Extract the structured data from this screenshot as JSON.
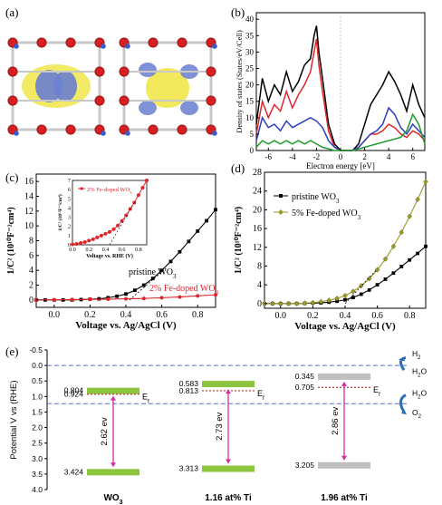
{
  "panels": {
    "a": {
      "label": "(a)"
    },
    "b": {
      "label": "(b)"
    },
    "c": {
      "label": "(c)"
    },
    "d": {
      "label": "(d)"
    },
    "e": {
      "label": "(e)"
    }
  },
  "colors": {
    "black": "#000000",
    "red": "#e0252b",
    "blue": "#2d3fbf",
    "green": "#1f9a2b",
    "olive": "#9a9a2a",
    "level_green": "#8cc63f",
    "level_gray": "#b8b8b8",
    "arrow_magenta": "#d62aa6",
    "fermi_red": "#c0392b",
    "dash_blue": "#5a6fc0",
    "icon_blue": "#2a70b8",
    "atom_red": "#d42020",
    "isosurface_yellow": "#f0e64a",
    "isosurface_blue": "#6a7fd0"
  },
  "chart_data": [
    {
      "panel": "b",
      "type": "line",
      "xlabel": "Electron energy [eV]",
      "ylabel": "Density of states (States/eV/Cell)",
      "xlim": [
        -7,
        7
      ],
      "ylim": [
        0,
        42
      ],
      "xticks": [
        -6,
        -4,
        -2,
        0,
        2,
        4,
        6
      ],
      "yticks": [
        0,
        5,
        10,
        15,
        20,
        25,
        30,
        35,
        40
      ],
      "series": [
        {
          "color": "black",
          "x": [
            -7,
            -6.5,
            -6,
            -5.5,
            -5,
            -4.5,
            -4,
            -3.5,
            -3,
            -2.5,
            -2.2,
            -2,
            -1.8,
            -1.5,
            -1,
            -0.5,
            0,
            0.5,
            1,
            1.5,
            2,
            2.5,
            3,
            3.5,
            4,
            4.5,
            5,
            5.5,
            6,
            6.5,
            7
          ],
          "y": [
            8,
            22,
            15,
            20,
            17,
            24,
            18,
            21,
            26,
            28,
            35,
            38,
            30,
            22,
            8,
            2,
            0,
            0,
            0,
            2,
            8,
            14,
            17,
            20,
            24,
            21,
            17,
            12,
            20,
            14,
            10
          ]
        },
        {
          "color": "red",
          "x": [
            -7,
            -6.5,
            -6,
            -5.5,
            -5,
            -4.5,
            -4,
            -3.5,
            -3,
            -2.5,
            -2.2,
            -2,
            -1.8,
            -1.5,
            -1,
            -0.5,
            0,
            0.5,
            1,
            1.5,
            2,
            2.5,
            3,
            3.5,
            4,
            4.5,
            5,
            5.5,
            6,
            6.5,
            7
          ],
          "y": [
            5,
            15,
            10,
            14,
            12,
            18,
            13,
            17,
            20,
            24,
            30,
            34,
            26,
            18,
            6,
            1,
            0,
            0,
            0,
            1,
            3,
            5,
            5,
            6,
            8,
            7,
            5,
            4,
            6,
            5,
            3
          ]
        },
        {
          "color": "blue",
          "x": [
            -7,
            -6.5,
            -6,
            -5.5,
            -5,
            -4.5,
            -4,
            -3.5,
            -3,
            -2.5,
            -2,
            -1.5,
            -1,
            -0.5,
            0,
            0.5,
            1,
            1.5,
            2,
            2.5,
            3,
            3.5,
            4,
            4.5,
            5,
            5.5,
            6,
            6.5,
            7
          ],
          "y": [
            3,
            10,
            7,
            8,
            6,
            9,
            7,
            8,
            9,
            10,
            9,
            7,
            3,
            1,
            0,
            0,
            0,
            1,
            3,
            5,
            6,
            8,
            13,
            11,
            7,
            5,
            8,
            6,
            4
          ]
        },
        {
          "color": "green",
          "x": [
            -7,
            -6.5,
            -6,
            -5.5,
            -5,
            -4.5,
            -4,
            -3.5,
            -3,
            -2.5,
            -2,
            -1.5,
            -1,
            -0.5,
            0,
            0.5,
            1,
            1.5,
            2,
            2.5,
            3,
            3.5,
            4,
            4.5,
            5,
            5.5,
            6,
            6.5,
            7
          ],
          "y": [
            1,
            3,
            2,
            3,
            2,
            3,
            2,
            3,
            2,
            3,
            2,
            1,
            0.5,
            0,
            0,
            0,
            0,
            0.5,
            1,
            1.5,
            2,
            2.5,
            3,
            3.5,
            4,
            6,
            11,
            8,
            2
          ]
        }
      ]
    },
    {
      "panel": "c",
      "type": "line",
      "xlabel": "Voltage vs. Ag/AgCl (V)",
      "ylabel": "1/C² (10¹⁰F⁻²cm⁴)",
      "xlim": [
        -0.1,
        0.9
      ],
      "ylim": [
        -1,
        17
      ],
      "xticks": [
        0.0,
        0.2,
        0.4,
        0.6,
        0.8
      ],
      "yticks": [
        0,
        2,
        4,
        6,
        8,
        10,
        12,
        14,
        16
      ],
      "series": [
        {
          "name": "pristine WO3",
          "color": "black",
          "marker": "square",
          "x": [
            -0.1,
            -0.05,
            0,
            0.05,
            0.1,
            0.15,
            0.2,
            0.25,
            0.3,
            0.35,
            0.4,
            0.45,
            0.5,
            0.55,
            0.6,
            0.65,
            0.7,
            0.75,
            0.8,
            0.85,
            0.9
          ],
          "y": [
            0,
            0,
            0,
            0,
            0,
            0.05,
            0.1,
            0.15,
            0.3,
            0.5,
            0.8,
            1.3,
            2,
            2.9,
            4,
            5.2,
            6.5,
            7.9,
            9.3,
            10.7,
            12.2
          ]
        },
        {
          "name": "2% Fe-doped WO3",
          "color": "red",
          "marker": "circle",
          "x": [
            -0.1,
            0,
            0.1,
            0.2,
            0.3,
            0.4,
            0.5,
            0.6,
            0.7,
            0.8,
            0.9
          ],
          "y": [
            0,
            0.02,
            0.05,
            0.08,
            0.1,
            0.15,
            0.2,
            0.3,
            0.4,
            0.55,
            0.7
          ]
        }
      ],
      "inset": {
        "xlabel": "Voltage vs. RHE (V)",
        "ylabel": "1/C² (10¹²F⁻²cm⁴)",
        "xlim": [
          0,
          0.9
        ],
        "ylim": [
          0,
          7
        ],
        "xticks": [
          0.0,
          0.2,
          0.4,
          0.6,
          0.8
        ],
        "yticks": [
          0,
          1,
          2,
          3,
          4,
          5,
          6,
          7
        ],
        "legend": "2% Fe-doped WO3",
        "series": [
          {
            "color": "red",
            "x": [
              0,
              0.05,
              0.1,
              0.15,
              0.2,
              0.25,
              0.3,
              0.35,
              0.4,
              0.45,
              0.5,
              0.55,
              0.6,
              0.65,
              0.7,
              0.75,
              0.8,
              0.85,
              0.9
            ],
            "y": [
              0.05,
              0.1,
              0.2,
              0.3,
              0.45,
              0.6,
              0.8,
              1,
              1.2,
              1.4,
              1.7,
              2.1,
              2.6,
              3.2,
              3.9,
              4.6,
              5.4,
              6.2,
              7
            ]
          }
        ]
      }
    },
    {
      "panel": "d",
      "type": "line",
      "xlabel": "Voltage vs. Ag/AgCl (V)",
      "ylabel": "1/C² (10¹⁰F⁻²cm⁴)",
      "xlim": [
        -0.1,
        0.9
      ],
      "ylim": [
        -1,
        28
      ],
      "xticks": [
        0.0,
        0.2,
        0.4,
        0.6,
        0.8
      ],
      "yticks": [
        0,
        4,
        8,
        12,
        16,
        20,
        24,
        28
      ],
      "legend_position": "top-left",
      "series": [
        {
          "name": "pristine WO3",
          "color": "black",
          "marker": "square",
          "x": [
            -0.1,
            -0.05,
            0,
            0.05,
            0.1,
            0.15,
            0.2,
            0.25,
            0.3,
            0.35,
            0.4,
            0.45,
            0.5,
            0.55,
            0.6,
            0.65,
            0.7,
            0.75,
            0.8,
            0.85,
            0.9
          ],
          "y": [
            0,
            0,
            0,
            0,
            0,
            0.05,
            0.1,
            0.15,
            0.3,
            0.5,
            0.8,
            1.3,
            2,
            2.9,
            4,
            5.2,
            6.5,
            7.9,
            9.3,
            10.7,
            12.2
          ]
        },
        {
          "name": "5% Fe-doped WO3",
          "color": "olive",
          "marker": "diamond",
          "x": [
            -0.1,
            -0.05,
            0,
            0.05,
            0.1,
            0.15,
            0.2,
            0.25,
            0.3,
            0.35,
            0.4,
            0.45,
            0.5,
            0.55,
            0.6,
            0.65,
            0.7,
            0.75,
            0.8,
            0.85,
            0.9
          ],
          "y": [
            0,
            0,
            0,
            0,
            0,
            0.1,
            0.2,
            0.4,
            0.7,
            1.1,
            1.7,
            2.6,
            3.8,
            5.3,
            7.2,
            9.5,
            12.2,
            15.2,
            18.6,
            22.2,
            26
          ]
        }
      ]
    },
    {
      "panel": "e",
      "type": "diagram",
      "ylabel": "Potential V vs (RHE)",
      "ylim": [
        -0.5,
        4.0
      ],
      "yticks": [
        "-0.5",
        "0.0",
        "0.5",
        "1.0",
        "1.5",
        "2.0",
        "2.5",
        "3.0",
        "3.5",
        "4.0"
      ],
      "h2_level": 0.0,
      "o2_level": 1.23,
      "samples": [
        {
          "label": "WO3",
          "cb": 0.804,
          "vb": 3.424,
          "ef": 0.924,
          "cb_label": "0.804",
          "vb_label": "3.424",
          "ef_label": "0.924",
          "gap_label": "2.62 ev",
          "band_color": "level_green"
        },
        {
          "label": "1.16 at% Ti",
          "cb": 0.583,
          "vb": 3.313,
          "ef": 0.813,
          "cb_label": "0.583",
          "vb_label": "3.313",
          "ef_label": "0.813",
          "gap_label": "2.73 ev",
          "band_color": "level_green"
        },
        {
          "label": "1.96 at% Ti",
          "cb": 0.345,
          "vb": 3.205,
          "ef": 0.705,
          "cb_label": "0.345",
          "vb_label": "3.205",
          "ef_label": "0.705",
          "gap_label": "2.86 ev",
          "band_color": "level_gray"
        }
      ],
      "fermi_label": "Ef",
      "redox": {
        "h2": "H2",
        "h2o": "H2O",
        "o2": "O2"
      }
    }
  ]
}
